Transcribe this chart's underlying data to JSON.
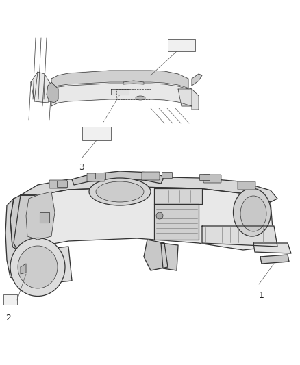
{
  "bg_color": "#ffffff",
  "line_color": "#333333",
  "gray_fill": "#d8d8d8",
  "light_fill": "#eeeeee",
  "dark_fill": "#aaaaaa",
  "label_color": "#222222",
  "figsize": [
    4.38,
    5.33
  ],
  "dpi": 100,
  "label_fontsize": 9,
  "lw_thin": 0.5,
  "lw_med": 0.9,
  "lw_thick": 1.3
}
